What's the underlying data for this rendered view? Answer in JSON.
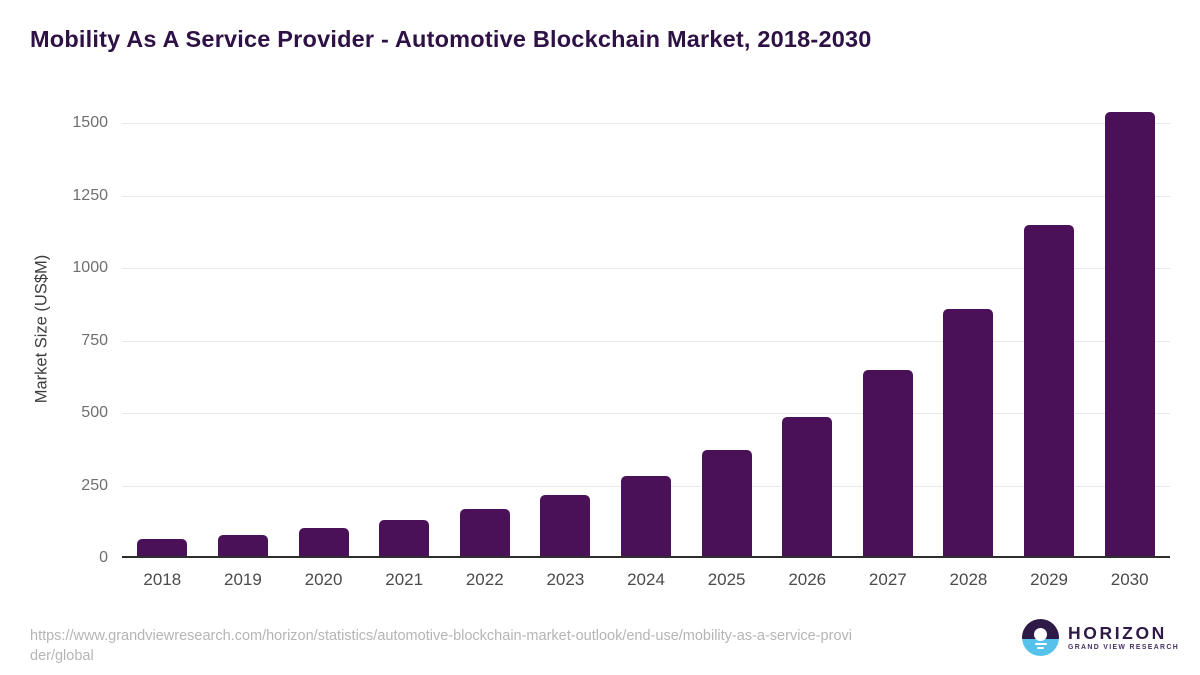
{
  "chart_data": {
    "type": "bar",
    "title": "Mobility As A Service Provider - Automotive Blockchain Market, 2018-2030",
    "xlabel": "",
    "ylabel": "Market Size (US$M)",
    "categories": [
      "2018",
      "2019",
      "2020",
      "2021",
      "2022",
      "2023",
      "2024",
      "2025",
      "2026",
      "2027",
      "2028",
      "2029",
      "2030"
    ],
    "values": [
      64,
      81,
      102,
      132,
      170,
      218,
      283,
      374,
      488,
      650,
      858,
      1150,
      1540
    ],
    "yticks": [
      0,
      250,
      500,
      750,
      1000,
      1250,
      1500
    ],
    "ylim": [
      0,
      1580
    ],
    "grid": "horizontal-only",
    "legend": false,
    "bar_color": "#4a1158"
  },
  "footer": {
    "url": "https://www.grandviewresearch.com/horizon/statistics/automotive-blockchain-market-outlook/end-use/mobility-as-a-service-provider/global",
    "url_lines": {
      "line1": "https://www.grandviewresearch.com/horizon/statistics/automotive-blockchain-market-outlook/end-use/mobility-as-a-service-provi",
      "line2": "der/global"
    },
    "logo": {
      "name": "HORIZON",
      "tagline": "GRAND VIEW RESEARCH"
    }
  },
  "colors": {
    "title_text": "#2f1245",
    "bar": "#4a1158",
    "gridline": "#e9e9e9",
    "axis_line": "#2d2d2d",
    "ytick_text": "#6f6f6f",
    "xtick_text": "#4b4b4b",
    "url_text": "#b5b5b5",
    "logo_purple": "#2e1a47",
    "logo_blue": "#56c2ec"
  }
}
